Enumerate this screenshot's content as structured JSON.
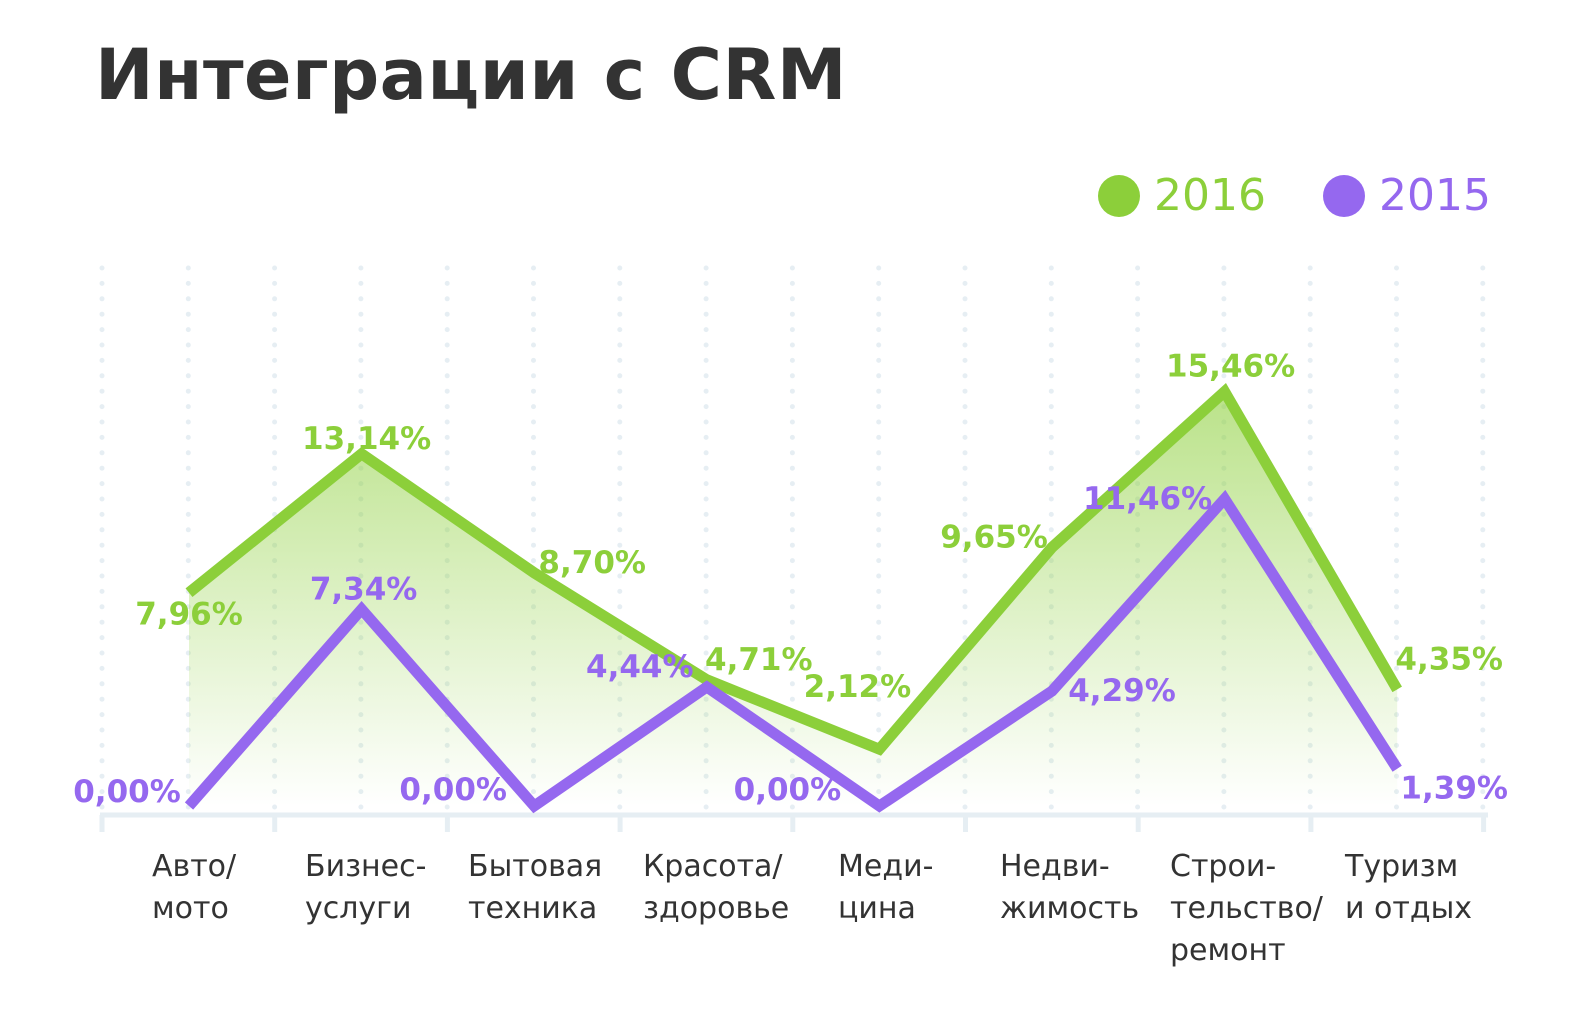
{
  "chart_data": {
    "type": "line",
    "title": "Интеграции с CRM",
    "categories": [
      "Авто/\nмото",
      "Бизнес-\nуслуги",
      "Бытовая\nтехника",
      "Красота/\nздоровье",
      "Меди-\nцина",
      "Недви-\nжимость",
      "Строи-\nтельство/\nремонт",
      "Туризм\nи отдых"
    ],
    "series": [
      {
        "name": "2016",
        "color": "#8ccf3a",
        "values": [
          7.96,
          13.14,
          8.7,
          4.71,
          2.12,
          9.65,
          15.46,
          4.35
        ],
        "labels": [
          "7,96%",
          "13,14%",
          "8,70%",
          "4,71%",
          "2,12%",
          "9,65%",
          "15,46%",
          "4,35%"
        ]
      },
      {
        "name": "2015",
        "color": "#9568ef",
        "values": [
          0.0,
          7.34,
          0.0,
          4.44,
          0.0,
          4.29,
          11.46,
          1.39
        ],
        "labels": [
          "0,00%",
          "7,34%",
          "0,00%",
          "4,44%",
          "0,00%",
          "4,29%",
          "11,46%",
          "1,39%"
        ]
      }
    ],
    "ylim": [
      0,
      16
    ],
    "xlabel": "",
    "ylabel": "",
    "grid": "vertical dotted",
    "legend_position": "top-right"
  }
}
